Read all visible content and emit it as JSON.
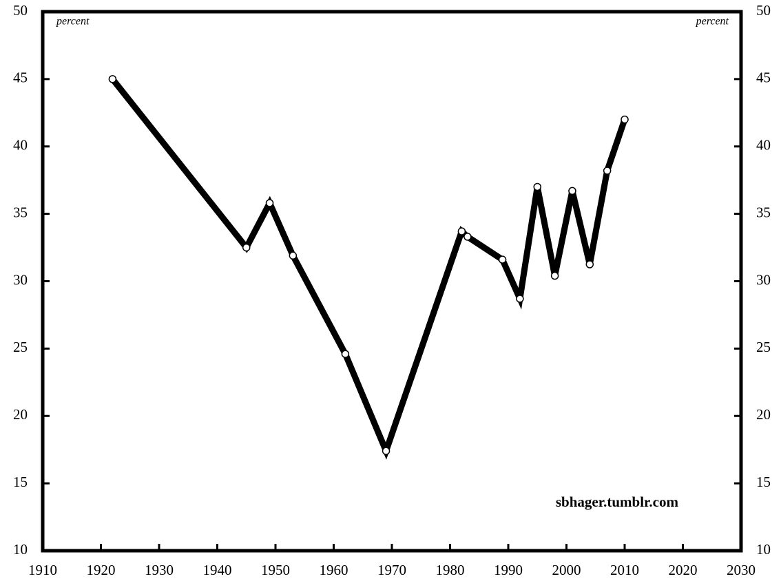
{
  "chart_data": {
    "type": "line",
    "y_unit_left": "percent",
    "y_unit_right": "percent",
    "annotation": "sbhager.tumblr.com",
    "x": [
      1922,
      1945,
      1949,
      1953,
      1962,
      1969,
      1982,
      1983,
      1989,
      1992,
      1995,
      1998,
      2001,
      2004,
      2007,
      2010
    ],
    "series": [
      {
        "name": "percent",
        "color": "#000000",
        "values": [
          45.0,
          32.5,
          35.8,
          31.9,
          24.6,
          17.4,
          33.7,
          33.3,
          31.6,
          28.7,
          37.0,
          30.4,
          36.7,
          31.25,
          38.2,
          42.0
        ]
      }
    ],
    "xlim": [
      1910,
      2030
    ],
    "xticks": [
      1910,
      1920,
      1930,
      1940,
      1950,
      1960,
      1970,
      1980,
      1990,
      2000,
      2010,
      2020,
      2030
    ],
    "ylim": [
      10,
      50
    ],
    "yticks": [
      10,
      15,
      20,
      25,
      30,
      35,
      40,
      45,
      50
    ],
    "grid": false
  }
}
